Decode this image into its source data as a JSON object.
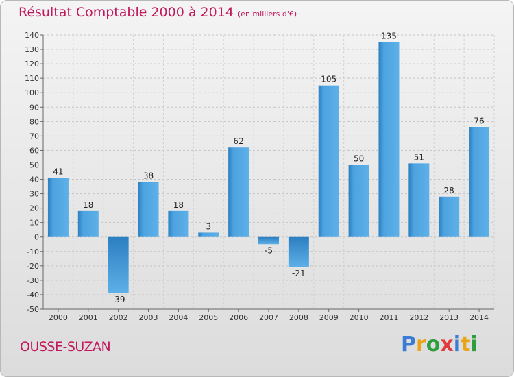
{
  "place": "OUSSE-SUZAN",
  "brand": {
    "letters": [
      "P",
      "r",
      "o",
      "x",
      "i",
      "t",
      "i"
    ],
    "colors": [
      "#3a7bd5",
      "#e8a317",
      "#2e9e3e",
      "#e23b3b",
      "#3a7bd5",
      "#e8a317",
      "#2e9e3e"
    ]
  },
  "colors": {
    "accent": "#c2185b",
    "bar_light": "#5eb0e8",
    "bar_dark": "#2c7fc0"
  },
  "chart_data": {
    "type": "bar",
    "title": "Résultat Comptable 2000 à 2014",
    "subtitle": "(en milliers d'€)",
    "categories": [
      "2000",
      "2001",
      "2002",
      "2003",
      "2004",
      "2005",
      "2006",
      "2007",
      "2008",
      "2009",
      "2010",
      "2011",
      "2012",
      "2013",
      "2014"
    ],
    "values": [
      41,
      18,
      -39,
      38,
      18,
      3,
      62,
      -5,
      -21,
      105,
      50,
      135,
      51,
      28,
      76
    ],
    "data_labels": [
      "41",
      "18",
      "-39",
      "38",
      "18",
      "3",
      "62",
      "-5",
      "-21",
      "105",
      "50",
      "135",
      "51",
      "28",
      "76"
    ],
    "yticks": [
      140,
      130,
      120,
      110,
      100,
      90,
      80,
      70,
      60,
      50,
      40,
      30,
      20,
      10,
      0,
      -10,
      -20,
      -30,
      -40,
      -50
    ],
    "ylim": [
      -50,
      140
    ],
    "xlabel": "",
    "ylabel": "",
    "grid": "horizontal dashed"
  }
}
